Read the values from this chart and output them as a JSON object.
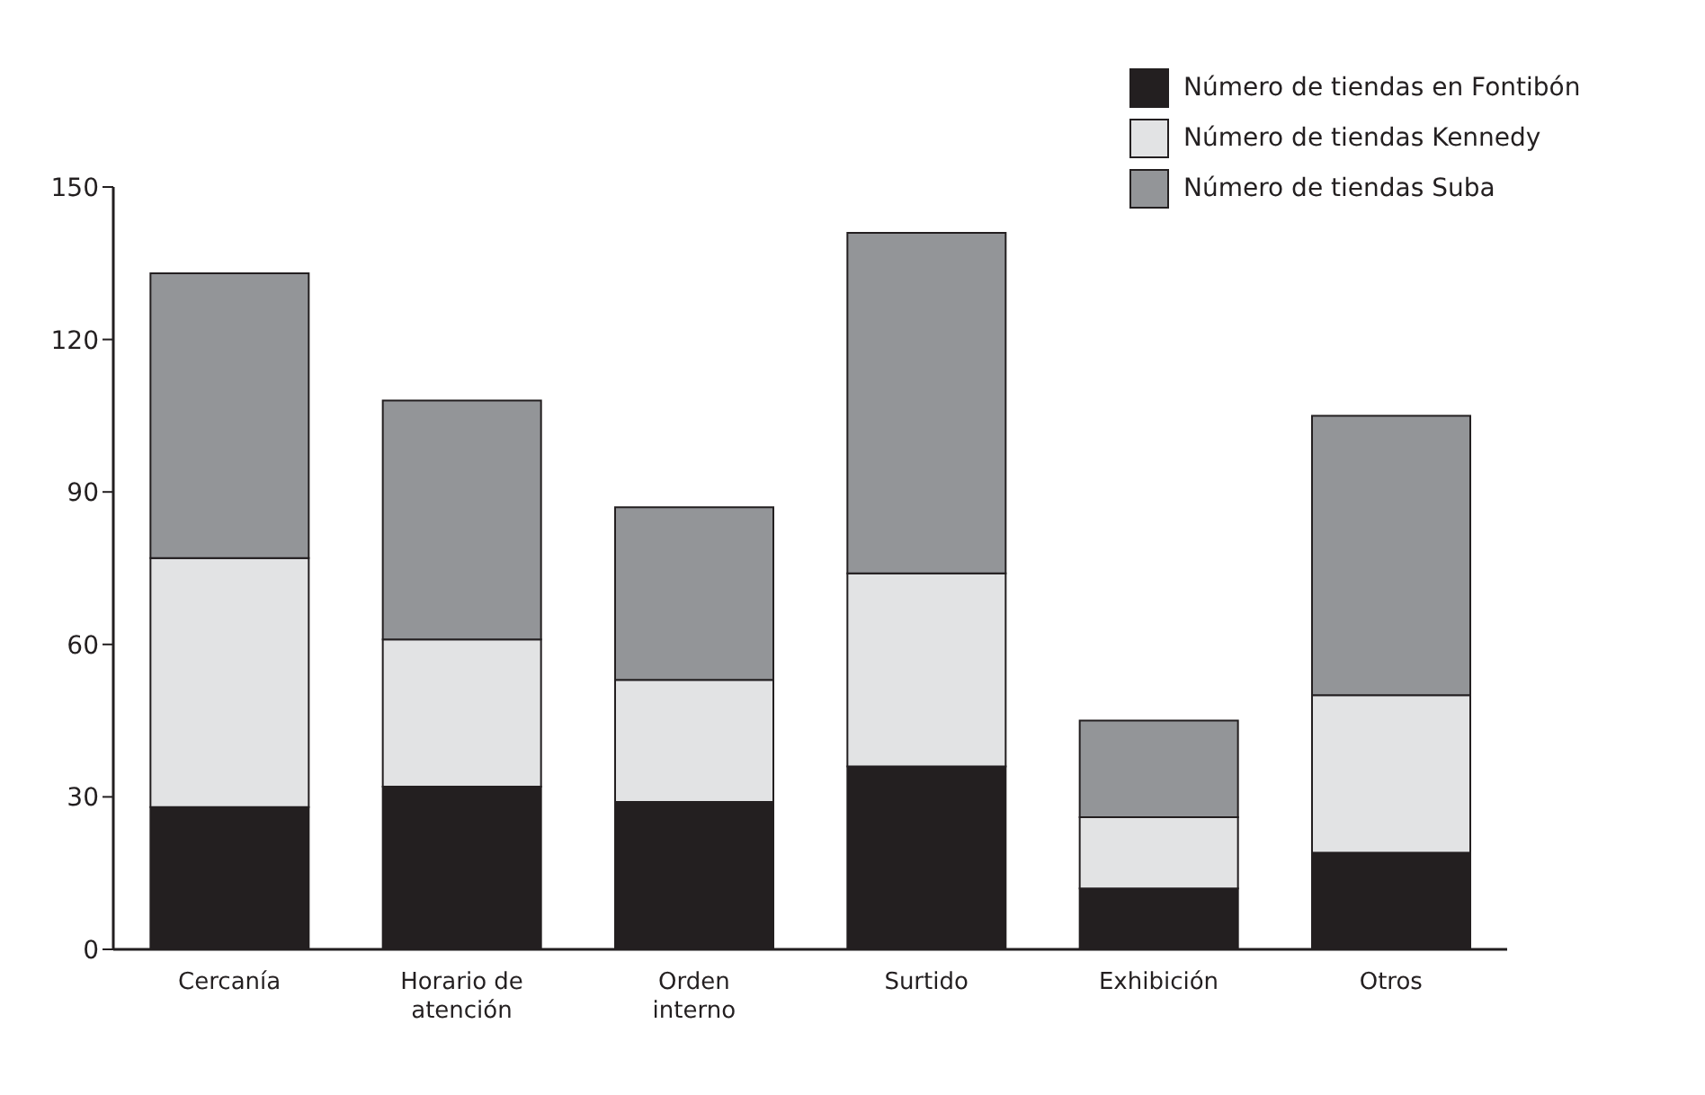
{
  "chart_data": {
    "type": "bar",
    "stacked": true,
    "categories": [
      "Cercanía",
      "Horario de atención",
      "Orden interno",
      "Surtido",
      "Exhibición",
      "Otros"
    ],
    "series": [
      {
        "name": "Número de tiendas en Fontibón",
        "color": "#231f20",
        "values": [
          28,
          32,
          29,
          36,
          12,
          19
        ]
      },
      {
        "name": "Número de tiendas Kennedy",
        "color": "#e2e3e4",
        "values": [
          49,
          29,
          24,
          38,
          14,
          31
        ]
      },
      {
        "name": "Número de tiendas Suba",
        "color": "#939598",
        "values": [
          56,
          47,
          34,
          67,
          19,
          55
        ]
      }
    ],
    "ylim": [
      0,
      150
    ],
    "yticks": [
      0,
      30,
      60,
      90,
      120,
      150
    ],
    "grid": false,
    "legend": "top right"
  }
}
